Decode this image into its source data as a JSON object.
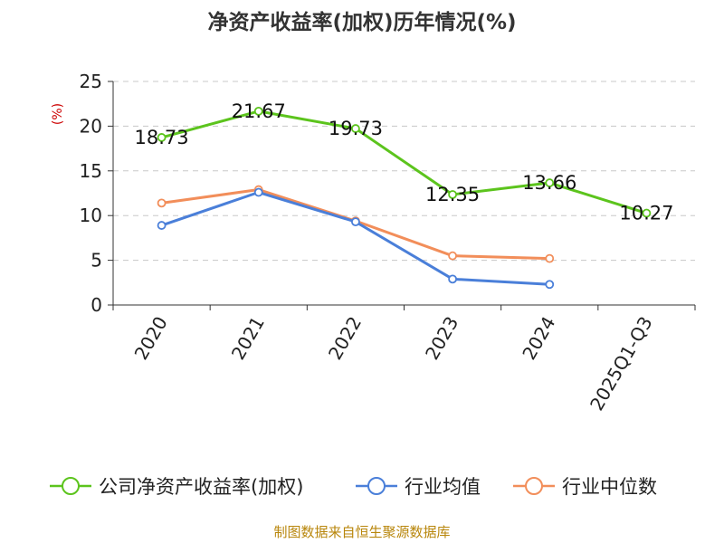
{
  "chart_data": {
    "type": "line",
    "title": "净资产收益率(加权)历年情况(%)",
    "ylabel": "(%)",
    "xlabel": "",
    "categories": [
      "2020",
      "2021",
      "2022",
      "2023",
      "2024",
      "2025Q1-Q3"
    ],
    "ylim": [
      0,
      25
    ],
    "yticks": [
      0,
      5,
      10,
      15,
      20,
      25
    ],
    "series": [
      {
        "name": "公司净资产收益率(加权)",
        "color": "#5cc41d",
        "values": [
          18.73,
          21.67,
          19.73,
          12.35,
          13.66,
          10.27
        ],
        "labels": [
          "18.73",
          "21.67",
          "19.73",
          "12.35",
          "13.66",
          "10.27"
        ]
      },
      {
        "name": "行业均值",
        "color": "#4a7fd9",
        "values": [
          8.9,
          12.6,
          9.3,
          2.9,
          2.3,
          null
        ]
      },
      {
        "name": "行业中位数",
        "color": "#f28e5a",
        "values": [
          11.4,
          12.9,
          9.4,
          5.5,
          5.2,
          null
        ]
      }
    ],
    "grid": true,
    "legend_position": "bottom"
  },
  "source": "制图数据来自恒生聚源数据库"
}
